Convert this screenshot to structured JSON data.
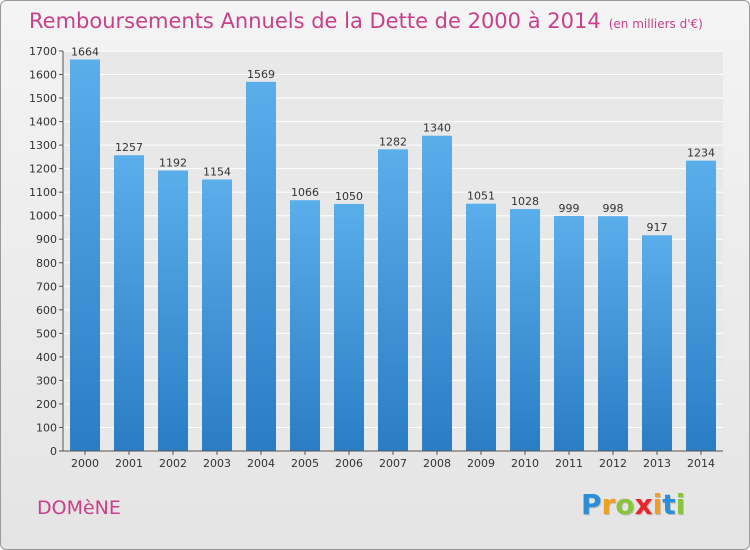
{
  "title": "Remboursements Annuels de la Dette de 2000 à 2014",
  "subtitle": "(en milliers d'€)",
  "town": "DOMèNE",
  "logo": {
    "letters": [
      "P",
      "r",
      "o",
      "x",
      "i",
      "t",
      "i"
    ],
    "colors": [
      "#2a8fd6",
      "#f0a021",
      "#8bc33a",
      "#e8262b",
      "#f0a021",
      "#2a8fd6",
      "#8bc33a"
    ]
  },
  "colors": {
    "bar_top": "#5aaeea",
    "bar_bottom": "#2a7dc4",
    "accent": "#c8408a"
  },
  "chart_data": {
    "type": "bar",
    "title": "Remboursements Annuels de la Dette de 2000 à 2014",
    "categories": [
      "2000",
      "2001",
      "2002",
      "2003",
      "2004",
      "2005",
      "2006",
      "2007",
      "2008",
      "2009",
      "2010",
      "2011",
      "2012",
      "2013",
      "2014"
    ],
    "values": [
      1664,
      1257,
      1192,
      1154,
      1569,
      1066,
      1050,
      1282,
      1340,
      1051,
      1028,
      999,
      998,
      917,
      1234
    ],
    "ylim": [
      0,
      1700
    ],
    "yticks": [
      0,
      100,
      200,
      300,
      400,
      500,
      600,
      700,
      800,
      900,
      1000,
      1100,
      1200,
      1300,
      1400,
      1500,
      1600,
      1700
    ],
    "grid": true
  }
}
